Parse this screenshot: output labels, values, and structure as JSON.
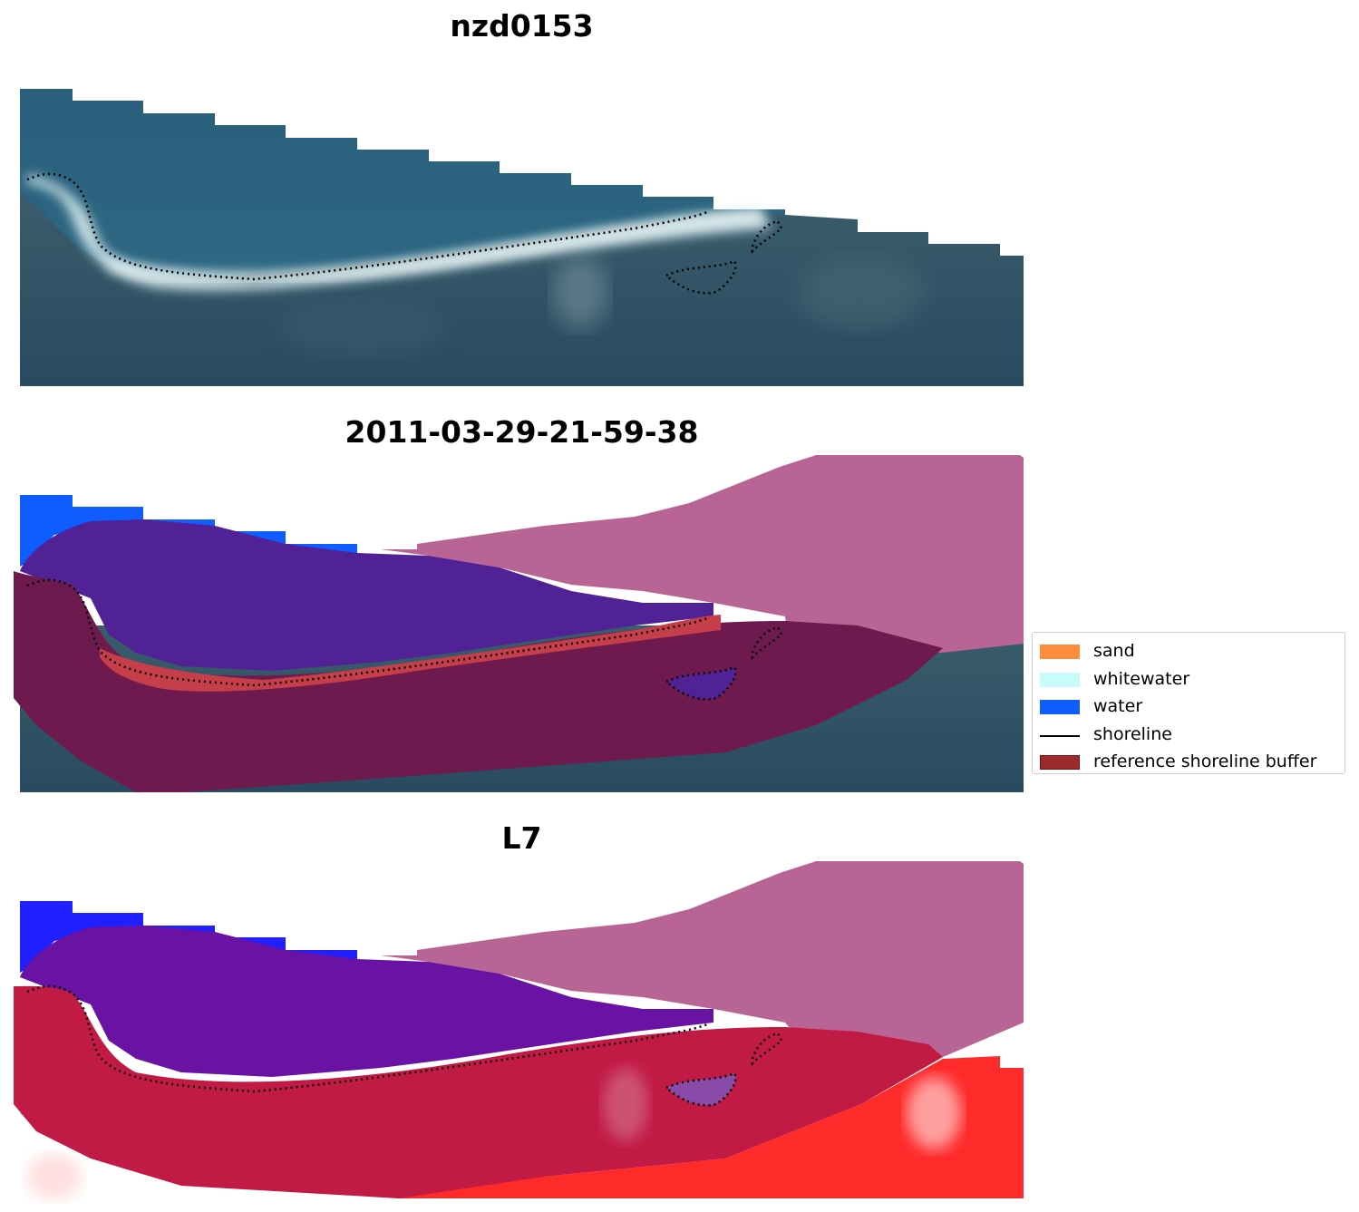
{
  "panels": [
    {
      "title": "nzd0153"
    },
    {
      "title": "2011-03-29-21-59-38"
    },
    {
      "title": "L7"
    }
  ],
  "legend": {
    "items": [
      {
        "label": "sand",
        "color": "#ff8c3a",
        "type": "patch"
      },
      {
        "label": "whitewater",
        "color": "#c8fcfc",
        "type": "patch"
      },
      {
        "label": "water",
        "color": "#0f5cff",
        "type": "patch"
      },
      {
        "label": "shoreline",
        "color": "#000000",
        "type": "line"
      },
      {
        "label": "reference shoreline buffer",
        "color": "#9b2a2a",
        "edge": "#7a0f0f",
        "type": "patch"
      }
    ]
  },
  "colors": {
    "ocean": "#2a6680",
    "land": "#2c4f63",
    "beach": "#dbeef0",
    "overlay_purple": "#512196",
    "overlay_pink": "#b86494",
    "overlay_maroon": "#6e1a4f",
    "overlay_red_sand": "#c53e4a",
    "water_blue": "#0f5cff",
    "l7_blue": "#6a12a4",
    "l7_red": "#c11a45",
    "l7_bright_red": "#ff2a2a"
  }
}
